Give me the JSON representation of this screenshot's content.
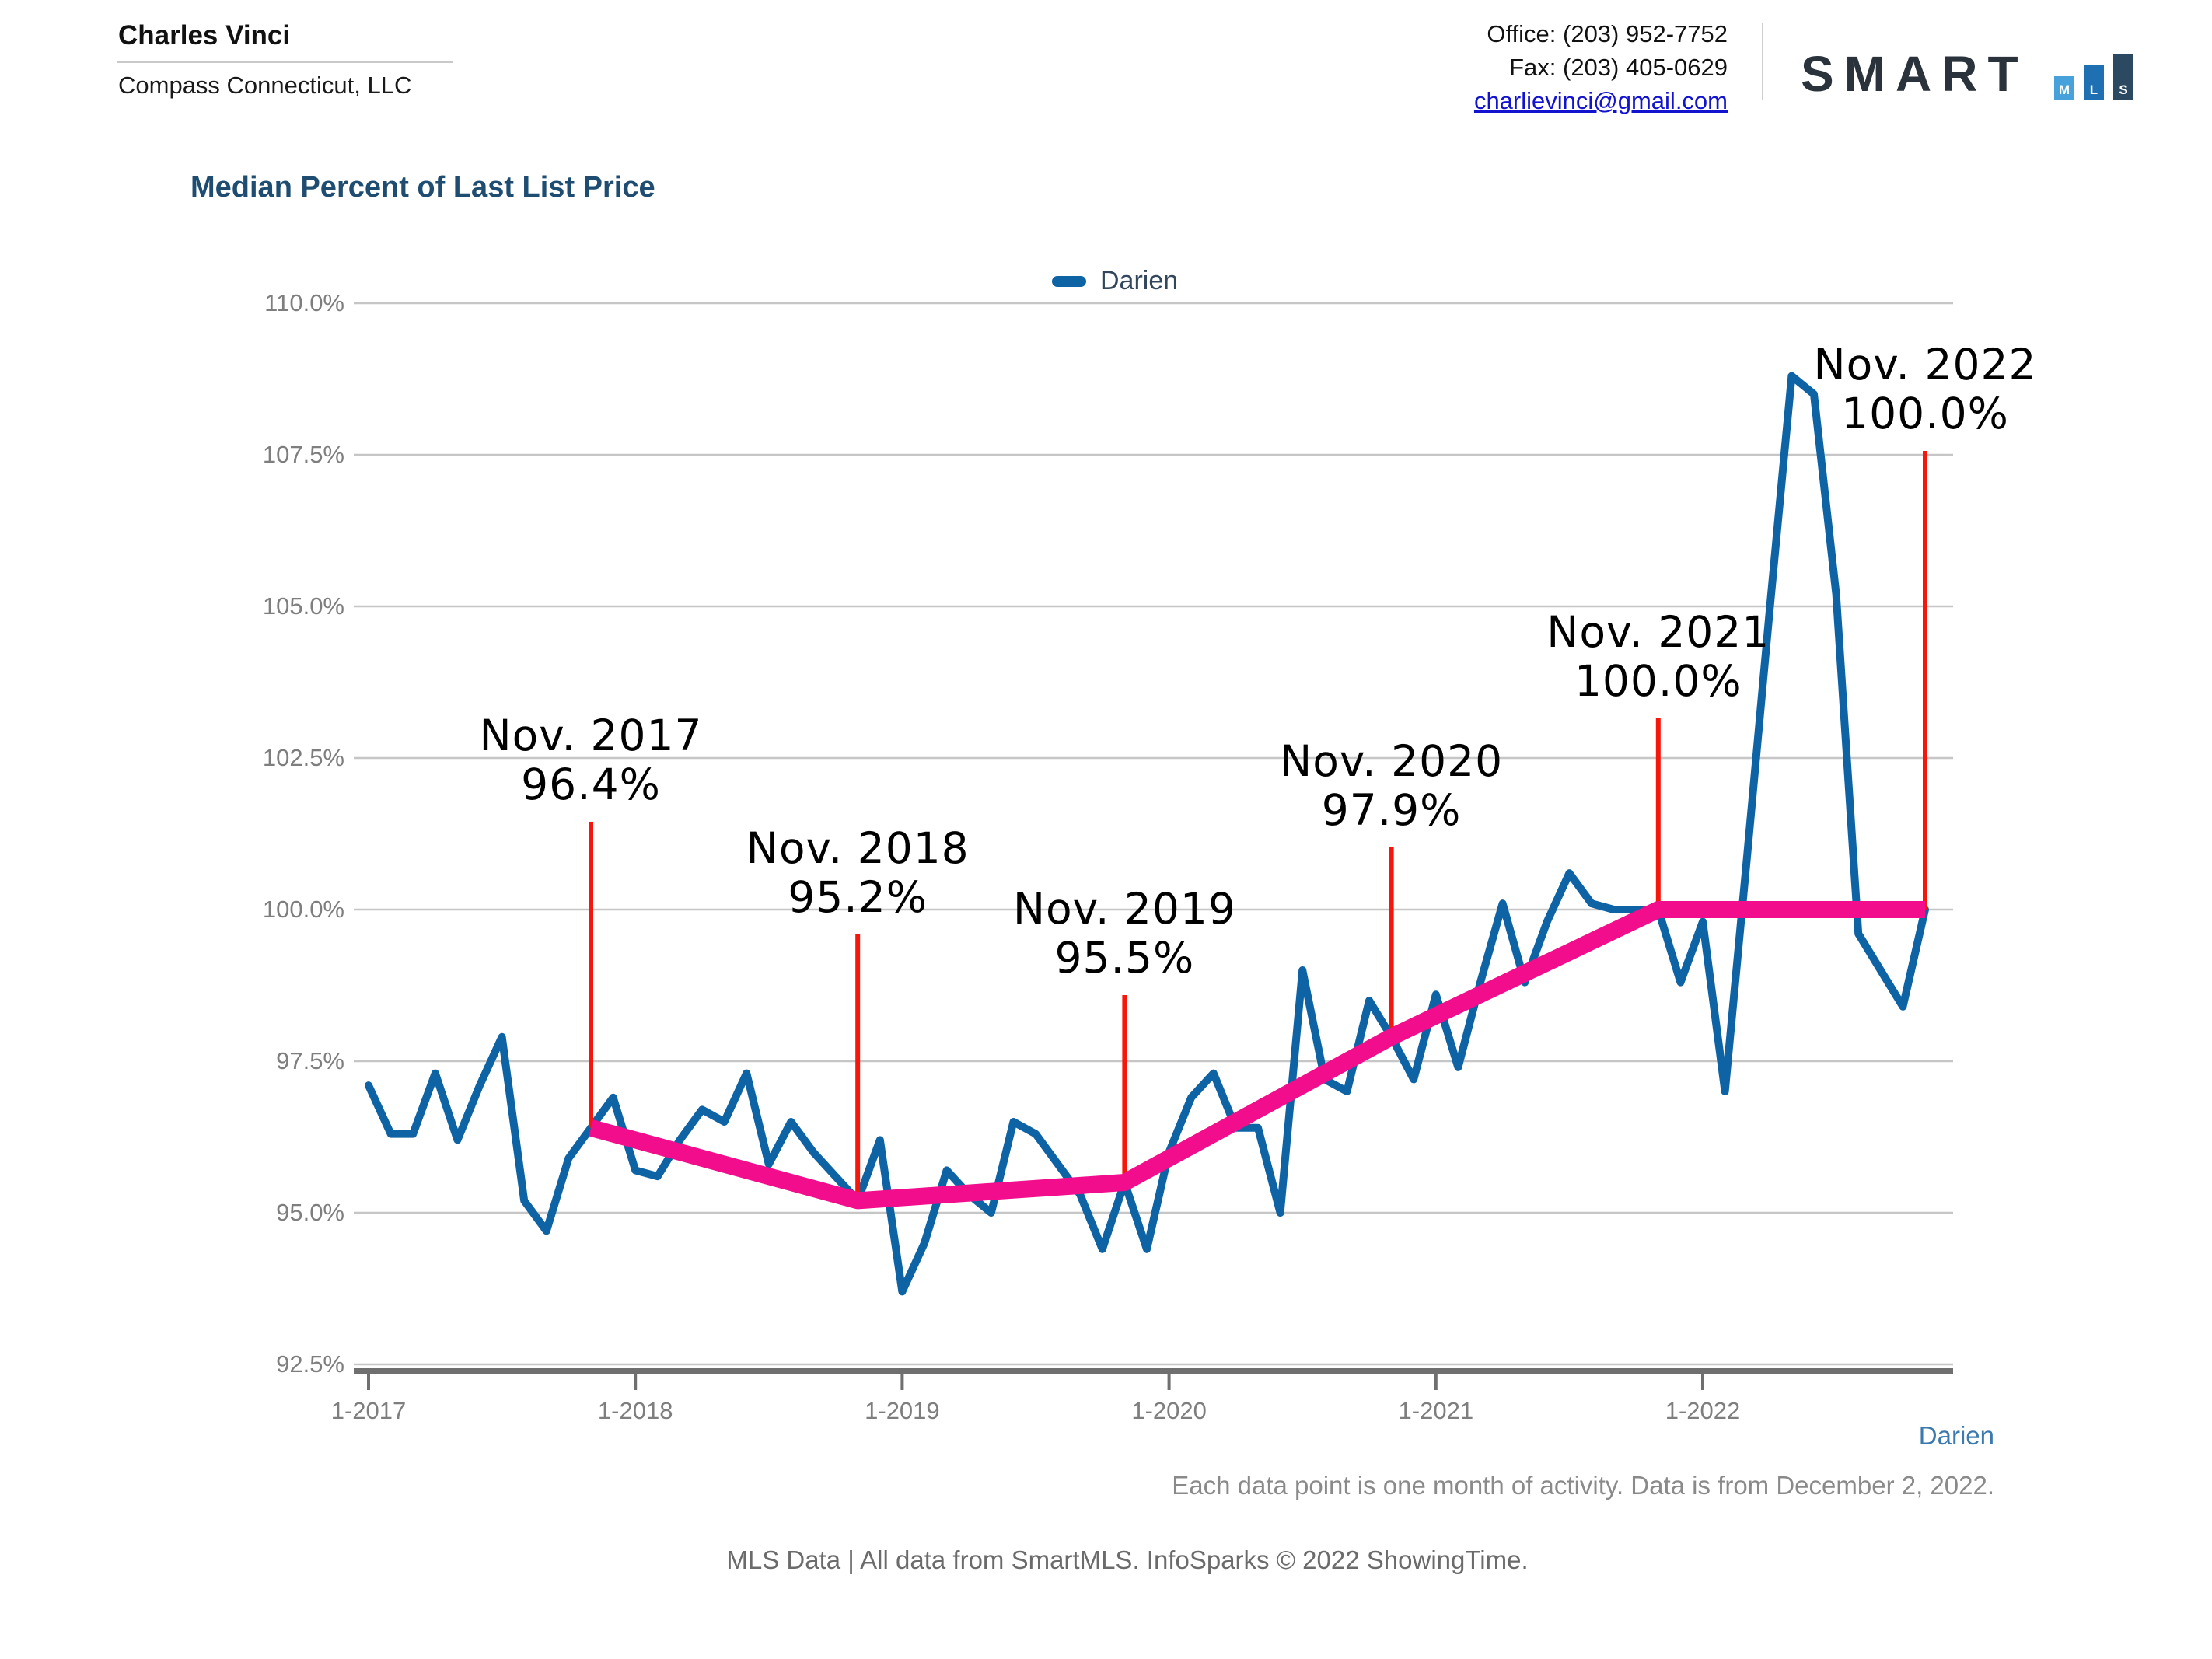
{
  "header": {
    "agent_name": "Charles Vinci",
    "company": "Compass Connecticut, LLC",
    "office": "Office: (203) 952-7752",
    "fax": "Fax: (203) 405-0629",
    "email": "charlievinci@gmail.com",
    "logo": {
      "text": "SMART",
      "bars": [
        {
          "letter": "M",
          "color": "#47a1da",
          "height": 30
        },
        {
          "letter": "L",
          "color": "#1f6fb3",
          "height": 44
        },
        {
          "letter": "S",
          "color": "#2b4a61",
          "height": 58
        }
      ]
    }
  },
  "chart": {
    "title": "Median Percent of Last List Price",
    "legend_label": "Darien",
    "series_label": "Darien",
    "footnote": "Each data point is one month of activity. Data is from December 2, 2022.",
    "source_line": "MLS Data | All data from SmartMLS. InfoSparks © 2022 ShowingTime."
  },
  "chart_data": {
    "type": "line",
    "title": "Median Percent of Last List Price",
    "interval": "monthly",
    "x_range": [
      "2017-01",
      "2022-11"
    ],
    "x_tick_labels": [
      "1-2017",
      "1-2018",
      "1-2019",
      "1-2020",
      "1-2021",
      "1-2022"
    ],
    "y_tick_labels": [
      "110.0%",
      "107.5%",
      "105.0%",
      "102.5%",
      "100.0%",
      "97.5%",
      "95.0%",
      "92.5%"
    ],
    "ylim": [
      92.5,
      110.0
    ],
    "ytick_step": 2.5,
    "grid": true,
    "legend_position": "top",
    "series": [
      {
        "name": "Darien",
        "color": "#0e63a5",
        "values": [
          97.1,
          96.3,
          96.3,
          97.3,
          96.2,
          97.1,
          97.9,
          95.2,
          94.7,
          95.9,
          96.4,
          96.9,
          95.7,
          95.6,
          96.2,
          96.7,
          96.5,
          97.3,
          95.8,
          96.5,
          96.0,
          95.6,
          95.2,
          96.2,
          93.7,
          94.5,
          95.7,
          95.3,
          95.0,
          96.5,
          96.3,
          95.8,
          95.3,
          94.4,
          95.5,
          94.4,
          96.0,
          96.9,
          97.3,
          96.4,
          96.4,
          95.0,
          99.0,
          97.2,
          97.0,
          98.5,
          97.9,
          97.2,
          98.6,
          97.4,
          98.8,
          100.1,
          98.8,
          99.8,
          100.6,
          100.1,
          100.0,
          100.0,
          100.0,
          98.8,
          99.8,
          97.0,
          100.9,
          104.9,
          108.8,
          108.5,
          105.2,
          99.6,
          99.0,
          98.4,
          100.0
        ]
      }
    ],
    "trend_series": {
      "name": "November annotated values",
      "color": "#f20d8c",
      "points": [
        {
          "month": "2017-11",
          "value": 96.4
        },
        {
          "month": "2018-11",
          "value": 95.2
        },
        {
          "month": "2019-11",
          "value": 95.5
        },
        {
          "month": "2020-11",
          "value": 97.9
        },
        {
          "month": "2021-11",
          "value": 100.0
        },
        {
          "month": "2022-11",
          "value": 100.0
        }
      ]
    },
    "annotations": [
      {
        "label": "Nov. 2017",
        "value_label": "96.4%",
        "month": "2017-11",
        "value": 96.4
      },
      {
        "label": "Nov. 2018",
        "value_label": "95.2%",
        "month": "2018-11",
        "value": 95.2
      },
      {
        "label": "Nov. 2019",
        "value_label": "95.5%",
        "month": "2019-11",
        "value": 95.5
      },
      {
        "label": "Nov. 2020",
        "value_label": "97.9%",
        "month": "2020-11",
        "value": 97.9
      },
      {
        "label": "Nov. 2021",
        "value_label": "100.0%",
        "month": "2021-11",
        "value": 100.0
      },
      {
        "label": "Nov. 2022",
        "value_label": "100.0%",
        "month": "2022-11",
        "value": 100.0
      }
    ],
    "callout_color": "#f8150a",
    "gridline_color": "#c6c6c6",
    "axis_color": "#6f6f6f"
  }
}
